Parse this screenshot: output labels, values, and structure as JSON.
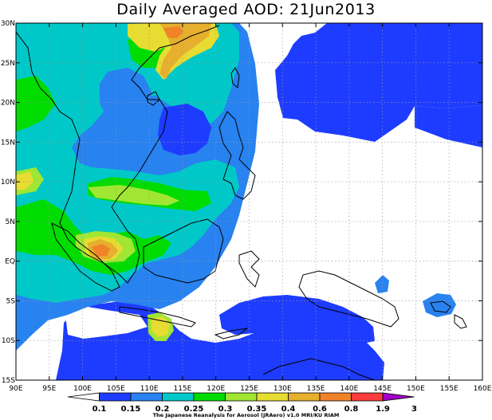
{
  "title": "Daily Averaged AOD: 21Jun2013",
  "credit": "The Japanese Reanalysis for Aerosol (JRAero) v1.0 MRI/KU RIAM",
  "map": {
    "lon_range": [
      90,
      160
    ],
    "lat_range": [
      -15,
      30
    ],
    "lon_ticks": [
      "90E",
      "95E",
      "100E",
      "105E",
      "110E",
      "115E",
      "120E",
      "125E",
      "130E",
      "135E",
      "140E",
      "145E",
      "150E",
      "155E",
      "160E"
    ],
    "lat_ticks": [
      "15S",
      "10S",
      "5S",
      "EQ",
      "5N",
      "10N",
      "15N",
      "20N",
      "25N",
      "30N"
    ],
    "gridlines": "dotted, every 5 degrees"
  },
  "colorbar": {
    "labels": [
      "0.1",
      "0.15",
      "0.2",
      "0.25",
      "0.3",
      "0.35",
      "0.4",
      "0.6",
      "0.8",
      "1.9",
      "3"
    ],
    "colors": [
      "#ffffff",
      "#1e3cff",
      "#2882f0",
      "#00c8c8",
      "#00dc00",
      "#a0e632",
      "#e6dc32",
      "#e6af2d",
      "#f08228",
      "#fa3c3c",
      "#a000c8"
    ]
  }
}
